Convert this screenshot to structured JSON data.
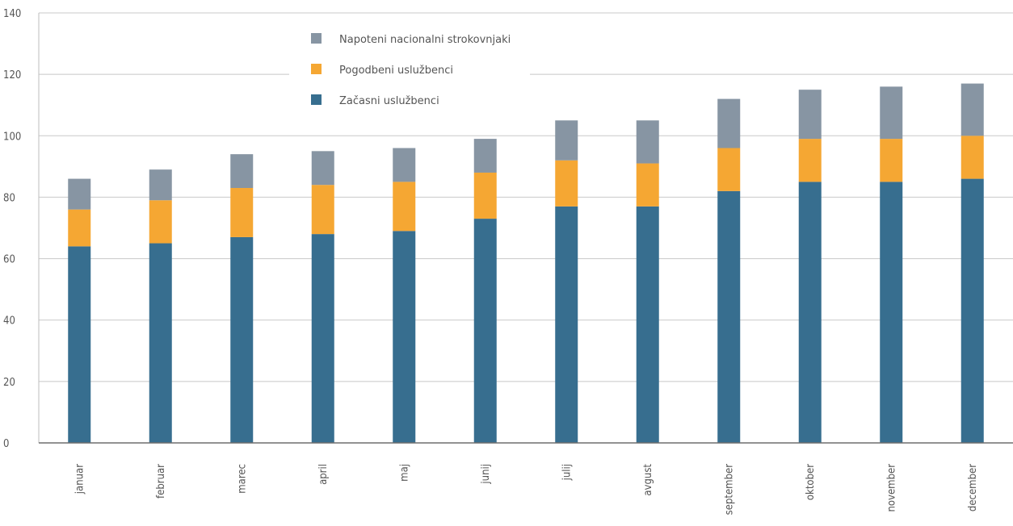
{
  "chart_data": {
    "type": "bar",
    "stacked": true,
    "categories": [
      "januar",
      "februar",
      "marec",
      "april",
      "maj",
      "junij",
      "julij",
      "avgust",
      "september",
      "oktober",
      "november",
      "december"
    ],
    "series": [
      {
        "name": "Začasni uslužbenci",
        "color": "#376e8f",
        "values": [
          64,
          65,
          67,
          68,
          69,
          73,
          77,
          77,
          82,
          85,
          85,
          86
        ]
      },
      {
        "name": "Pogodbeni uslužbenci",
        "color": "#f5a733",
        "values": [
          12,
          14,
          16,
          16,
          16,
          15,
          15,
          14,
          14,
          14,
          14,
          14
        ]
      },
      {
        "name": "Napoteni nacionalni strokovnjaki",
        "color": "#8795a3",
        "values": [
          10,
          10,
          11,
          11,
          11,
          11,
          13,
          14,
          16,
          16,
          17,
          17
        ]
      }
    ],
    "legend_order": [
      "Napoteni nacionalni strokovnjaki",
      "Pogodbeni uslužbenci",
      "Začasni uslužbenci"
    ],
    "yticks": [
      0,
      20,
      40,
      60,
      80,
      100,
      120,
      140
    ],
    "ylim": [
      0,
      140
    ],
    "grid": true,
    "legend_position": "top-left",
    "title": "",
    "xlabel": "",
    "ylabel": ""
  }
}
